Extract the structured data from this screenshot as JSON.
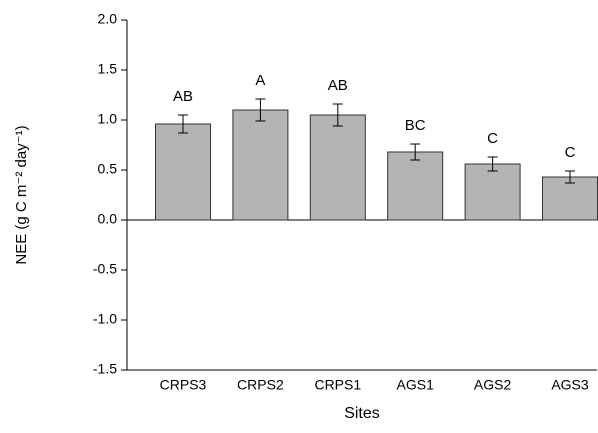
{
  "chart_data": {
    "type": "bar",
    "x_label": "Sites",
    "y_label": "NEE (g C m⁻² day⁻¹)",
    "categories": [
      "CRPS3",
      "CRPS2",
      "CRPS1",
      "AGS1",
      "AGS2",
      "AGS3"
    ],
    "values": [
      0.96,
      1.1,
      1.05,
      0.68,
      0.56,
      0.43
    ],
    "errors": [
      0.09,
      0.11,
      0.11,
      0.08,
      0.07,
      0.06
    ],
    "annotations": [
      "AB",
      "A",
      "AB",
      "BC",
      "C",
      "C"
    ],
    "color": "#b4b4b4",
    "ylim": [
      -1.5,
      2.0
    ],
    "yticks": [
      {
        "value": -1.5,
        "label": "-1.5"
      },
      {
        "value": -1.0,
        "label": "-1.0"
      },
      {
        "value": -0.5,
        "label": "-0.5"
      },
      {
        "value": 0,
        "label": "0.0"
      },
      {
        "value": 0.5,
        "label": "0.5"
      },
      {
        "value": 1.0,
        "label": "1.0"
      },
      {
        "value": 1.5,
        "label": "1.5"
      },
      {
        "value": 2.0,
        "label": "2.0"
      }
    ],
    "grid": false
  }
}
